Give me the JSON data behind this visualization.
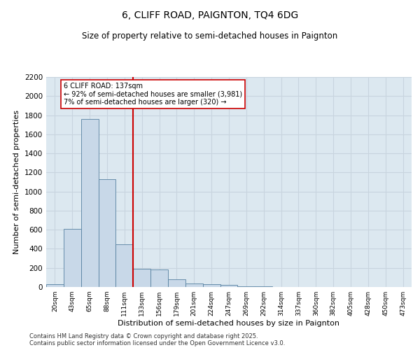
{
  "title": "6, CLIFF ROAD, PAIGNTON, TQ4 6DG",
  "subtitle": "Size of property relative to semi-detached houses in Paignton",
  "xlabel": "Distribution of semi-detached houses by size in Paignton",
  "ylabel": "Number of semi-detached properties",
  "categories": [
    "20sqm",
    "43sqm",
    "65sqm",
    "88sqm",
    "111sqm",
    "133sqm",
    "156sqm",
    "179sqm",
    "201sqm",
    "224sqm",
    "247sqm",
    "269sqm",
    "292sqm",
    "314sqm",
    "337sqm",
    "360sqm",
    "382sqm",
    "405sqm",
    "428sqm",
    "450sqm",
    "473sqm"
  ],
  "values": [
    30,
    610,
    1760,
    1130,
    450,
    190,
    185,
    80,
    40,
    30,
    20,
    10,
    5,
    3,
    2,
    1,
    1,
    0,
    0,
    0,
    0
  ],
  "bar_color": "#c8d8e8",
  "bar_edge_color": "#5580a0",
  "vline_x_index": 5,
  "vline_color": "#cc0000",
  "annotation_text": "6 CLIFF ROAD: 137sqm\n← 92% of semi-detached houses are smaller (3,981)\n7% of semi-detached houses are larger (320) →",
  "annotation_box_color": "#cc0000",
  "footer": "Contains HM Land Registry data © Crown copyright and database right 2025.\nContains public sector information licensed under the Open Government Licence v3.0.",
  "ylim": [
    0,
    2200
  ],
  "yticks": [
    0,
    200,
    400,
    600,
    800,
    1000,
    1200,
    1400,
    1600,
    1800,
    2000,
    2200
  ],
  "grid_color": "#c8d4de",
  "background_color": "#dce8f0",
  "title_fontsize": 10,
  "subtitle_fontsize": 8.5,
  "footer_fontsize": 6,
  "ylabel_fontsize": 8,
  "xlabel_fontsize": 8
}
